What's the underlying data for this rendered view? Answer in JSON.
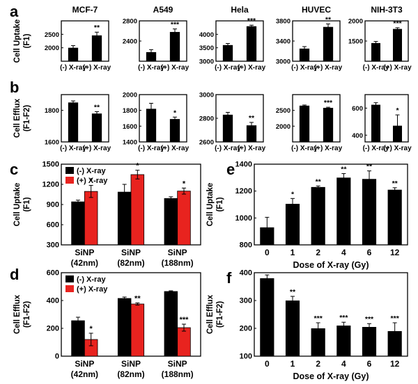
{
  "colors": {
    "neg": "#000000",
    "pos": "#e8231f",
    "mono": "#000000"
  },
  "chart_data": [
    {
      "id": "a1",
      "panel": "a",
      "type": "bar",
      "title": "MCF-7",
      "ylabel": "Cell Uptake\n(F1)",
      "categories": [
        "(-) X-ray",
        "(+) X-ray"
      ],
      "values": [
        2000,
        2460
      ],
      "errors": [
        80,
        120
      ],
      "sig": [
        "",
        "**"
      ],
      "ylim": [
        1500,
        3000
      ],
      "yticks": [
        "2000",
        "2500"
      ],
      "ytick_values": [
        2000,
        2500
      ]
    },
    {
      "id": "a2",
      "panel": "a",
      "type": "bar",
      "title": "A549",
      "categories": [
        "(-) X-ray",
        "(+) X-ray"
      ],
      "values": [
        2180,
        2580
      ],
      "errors": [
        50,
        60
      ],
      "sig": [
        "",
        "***"
      ],
      "ylim": [
        2000,
        2800
      ],
      "yticks": [
        "2400",
        "2800"
      ],
      "ytick_values": [
        2400,
        2800
      ]
    },
    {
      "id": "a3",
      "panel": "a",
      "type": "bar",
      "title": "Hela",
      "categories": [
        "(-) X-ray",
        "(+) X-ray"
      ],
      "values": [
        3600,
        4300
      ],
      "errors": [
        60,
        40
      ],
      "sig": [
        "",
        "***"
      ],
      "ylim": [
        3000,
        4500
      ],
      "yticks": [
        "3000",
        "3500",
        "4000"
      ],
      "ytick_values": [
        3000,
        3500,
        4000
      ]
    },
    {
      "id": "a4",
      "panel": "a",
      "type": "bar",
      "title": "HUVEC",
      "categories": [
        "(-) X-ray",
        "(+) X-ray"
      ],
      "values": [
        3250,
        3680
      ],
      "errors": [
        40,
        60
      ],
      "sig": [
        "",
        "**"
      ],
      "ylim": [
        3000,
        3800
      ],
      "yticks": [
        "3000",
        "3400",
        "3800"
      ],
      "ytick_values": [
        3000,
        3400,
        3800
      ]
    },
    {
      "id": "a5",
      "panel": "a",
      "type": "bar",
      "title": "NIH-3T3",
      "categories": [
        "(-) X-ray",
        "(+) X-ray"
      ],
      "values": [
        1450,
        1800
      ],
      "errors": [
        40,
        30
      ],
      "sig": [
        "",
        "***"
      ],
      "ylim": [
        1000,
        2000
      ],
      "yticks": [
        "1500",
        "2000"
      ],
      "ytick_values": [
        1500,
        2000
      ]
    },
    {
      "id": "b1",
      "panel": "b",
      "type": "bar",
      "ylabel": "Cell Efflux\n(F1-F2)",
      "categories": [
        "(-) X-ray",
        "(+) X-ray"
      ],
      "values": [
        1850,
        1780
      ],
      "errors": [
        10,
        12
      ],
      "sig": [
        "",
        "**"
      ],
      "ylim": [
        1600,
        1900
      ],
      "yticks": [
        "1600",
        "1800",
        "2000"
      ],
      "ytick_values": [
        1600,
        1800,
        2000
      ]
    },
    {
      "id": "b2",
      "panel": "b",
      "type": "bar",
      "categories": [
        "(-) X-ray",
        "(+) X-ray"
      ],
      "values": [
        1820,
        1690
      ],
      "errors": [
        70,
        25
      ],
      "sig": [
        "",
        "*"
      ],
      "ylim": [
        1400,
        2000
      ],
      "yticks": [
        "1400",
        "1600",
        "1800",
        "2000"
      ],
      "ytick_values": [
        1400,
        1600,
        1800,
        2000
      ]
    },
    {
      "id": "b3",
      "panel": "b",
      "type": "bar",
      "categories": [
        "(-) X-ray",
        "(+) X-ray"
      ],
      "values": [
        2830,
        2740
      ],
      "errors": [
        20,
        25
      ],
      "sig": [
        "",
        "**"
      ],
      "ylim": [
        2600,
        3000
      ],
      "yticks": [
        "2600",
        "2800",
        "3000"
      ],
      "ytick_values": [
        2600,
        2800,
        3000
      ]
    },
    {
      "id": "b4",
      "panel": "b",
      "type": "bar",
      "categories": [
        "(-) X-ray",
        "(+) X-ray"
      ],
      "values": [
        2650,
        2580
      ],
      "errors": [
        20,
        20
      ],
      "sig": [
        "",
        "***"
      ],
      "ylim": [
        1500,
        3000
      ],
      "yticks": [
        "2000",
        "2500"
      ],
      "ytick_values": [
        2000,
        2500
      ]
    },
    {
      "id": "b5",
      "panel": "b",
      "type": "bar",
      "categories": [
        "(-) X-ray",
        "(+) X-ray"
      ],
      "values": [
        625,
        470
      ],
      "errors": [
        15,
        80
      ],
      "sig": [
        "",
        "*"
      ],
      "ylim": [
        350,
        700
      ],
      "yticks": [
        "400",
        "600"
      ],
      "ytick_values": [
        400,
        600
      ]
    },
    {
      "id": "c",
      "panel": "c",
      "type": "bar",
      "ylabel": "Cell Uptake\n(F1)",
      "categories": [
        "SiNP\n(42nm)",
        "SiNP\n(82nm)",
        "SiNP\n(188nm)"
      ],
      "series": [
        {
          "name": "(-) X-ray",
          "values": [
            940,
            1085,
            990
          ],
          "errors": [
            25,
            115,
            25
          ]
        },
        {
          "name": "(+) X-ray",
          "values": [
            1095,
            1345,
            1100
          ],
          "errors": [
            90,
            65,
            45
          ]
        }
      ],
      "sig": [
        "*",
        "*",
        "*"
      ],
      "ylim": [
        300,
        1500
      ],
      "legend": "top-left",
      "yticks": [
        "300",
        "600",
        "900",
        "1200",
        "1500"
      ],
      "ytick_values": [
        300,
        600,
        900,
        1200,
        1500
      ]
    },
    {
      "id": "d",
      "panel": "d",
      "type": "bar",
      "ylabel": "Cell Efflux\n(F1-F2)",
      "categories": [
        "SiNP\n(42nm)",
        "SiNP\n(82nm)",
        "SiNP\n(188nm)"
      ],
      "series": [
        {
          "name": "(-) X-ray",
          "values": [
            255,
            415,
            465
          ],
          "errors": [
            25,
            10,
            5
          ]
        },
        {
          "name": "(+) X-ray",
          "values": [
            120,
            375,
            205
          ],
          "errors": [
            45,
            8,
            25
          ]
        }
      ],
      "sig": [
        "*",
        "**",
        "***"
      ],
      "ylim": [
        0,
        600
      ],
      "legend": "top-left",
      "yticks": [
        "0",
        "200",
        "400",
        "600"
      ],
      "ytick_values": [
        0,
        200,
        400,
        600
      ]
    },
    {
      "id": "e",
      "panel": "e",
      "type": "bar",
      "ylabel": "Cell Uptake\n(F1)",
      "xlabel": "Dose of X-ray (Gy)",
      "categories": [
        "0",
        "1",
        "2",
        "4",
        "6",
        "12"
      ],
      "values": [
        930,
        1105,
        1230,
        1300,
        1290,
        1210
      ],
      "errors": [
        75,
        40,
        8,
        30,
        60,
        15
      ],
      "sig": [
        "",
        "*",
        "**",
        "**",
        "**",
        "**"
      ],
      "ylim": [
        800,
        1400
      ],
      "yticks": [
        "800",
        "1000",
        "1200",
        "1400"
      ],
      "ytick_values": [
        800,
        1000,
        1200,
        1400
      ]
    },
    {
      "id": "f",
      "panel": "f",
      "type": "bar",
      "ylabel": "Cell Efflux\n(F1-F2)",
      "xlabel": "Dose of X-ray (Gy)",
      "categories": [
        "0",
        "1",
        "2",
        "4",
        "6",
        "12"
      ],
      "values": [
        380,
        300,
        200,
        210,
        205,
        190
      ],
      "errors": [
        12,
        15,
        20,
        12,
        12,
        30
      ],
      "sig": [
        "",
        "**",
        "***",
        "***",
        "***",
        "***"
      ],
      "ylim": [
        100,
        400
      ],
      "yticks": [
        "100",
        "200",
        "300",
        "400"
      ],
      "ytick_values": [
        100,
        200,
        300,
        400
      ]
    }
  ]
}
